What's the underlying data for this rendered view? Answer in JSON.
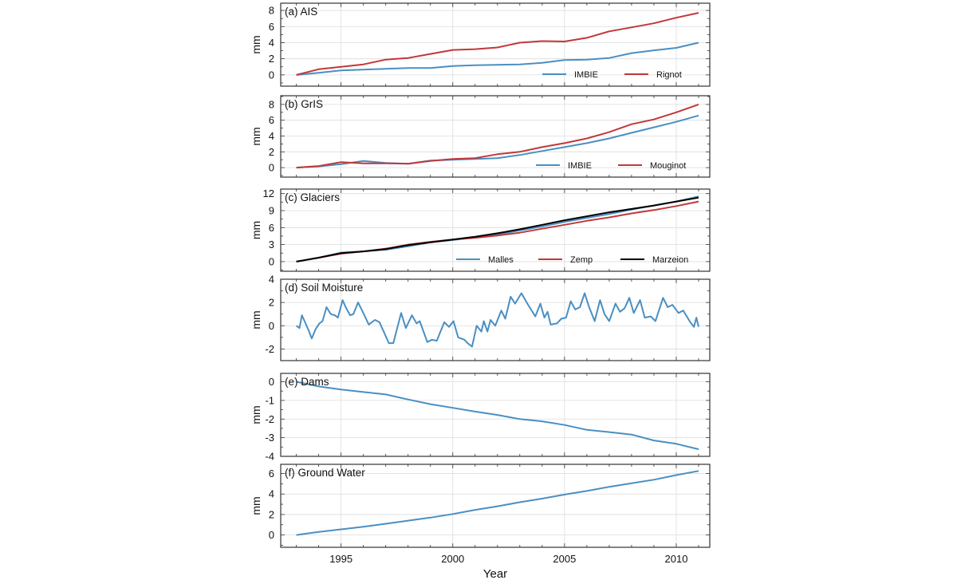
{
  "chart_data": [
    {
      "type": "line",
      "title": "(a) AIS",
      "ylabel": "mm",
      "xlabel": "",
      "xlim": [
        1992.3,
        2011.5
      ],
      "ylim": [
        -1.4,
        8.9
      ],
      "yticks": [
        0,
        2,
        4,
        6,
        8
      ],
      "grid": true,
      "legend_placement": "lower-right",
      "x": [
        1993,
        1994,
        1995,
        1996,
        1997,
        1998,
        1999,
        2000,
        2001,
        2002,
        2003,
        2004,
        2005,
        2006,
        2007,
        2008,
        2009,
        2010,
        2011
      ],
      "series": [
        {
          "name": "IMBIE",
          "color": "#4a8fc2",
          "values": [
            0,
            0.25,
            0.55,
            0.65,
            0.75,
            0.85,
            0.85,
            1.1,
            1.2,
            1.25,
            1.3,
            1.5,
            1.85,
            1.9,
            2.1,
            2.7,
            3.05,
            3.35,
            4.0
          ]
        },
        {
          "name": "Rignot",
          "color": "#c0383a",
          "values": [
            0,
            0.7,
            1.0,
            1.3,
            1.9,
            2.1,
            2.6,
            3.1,
            3.2,
            3.4,
            4.0,
            4.2,
            4.15,
            4.6,
            5.4,
            5.9,
            6.4,
            7.1,
            7.7
          ]
        }
      ]
    },
    {
      "type": "line",
      "title": "(b) GrIS",
      "ylabel": "mm",
      "xlabel": "",
      "xlim": [
        1992.3,
        2011.5
      ],
      "ylim": [
        -1.2,
        9.1
      ],
      "yticks": [
        0,
        2,
        4,
        6,
        8
      ],
      "grid": true,
      "legend_placement": "lower-right",
      "x": [
        1993,
        1994,
        1995,
        1996,
        1997,
        1998,
        1999,
        2000,
        2001,
        2002,
        2003,
        2004,
        2005,
        2006,
        2007,
        2008,
        2009,
        2010,
        2011
      ],
      "series": [
        {
          "name": "IMBIE",
          "color": "#4a8fc2",
          "values": [
            0,
            0.15,
            0.45,
            0.85,
            0.6,
            0.5,
            0.9,
            1.0,
            1.1,
            1.2,
            1.6,
            2.1,
            2.6,
            3.1,
            3.7,
            4.4,
            5.1,
            5.8,
            6.6
          ]
        },
        {
          "name": "Mouginot",
          "color": "#c0383a",
          "values": [
            0,
            0.2,
            0.7,
            0.55,
            0.55,
            0.5,
            0.85,
            1.1,
            1.2,
            1.7,
            2.0,
            2.6,
            3.1,
            3.7,
            4.5,
            5.5,
            6.1,
            7.0,
            8.0
          ]
        }
      ]
    },
    {
      "type": "line",
      "title": "(c) Glaciers",
      "ylabel": "mm",
      "xlabel": "",
      "xlim": [
        1992.3,
        2011.5
      ],
      "ylim": [
        -1.7,
        12.8
      ],
      "yticks": [
        0,
        3,
        6,
        9,
        12
      ],
      "grid": true,
      "legend_placement": "lower-right",
      "x": [
        1993,
        1994,
        1995,
        1996,
        1997,
        1998,
        1999,
        2000,
        2001,
        2002,
        2003,
        2004,
        2005,
        2006,
        2007,
        2008,
        2009,
        2010,
        2011
      ],
      "series": [
        {
          "name": "Malles",
          "color": "#4a8fc2",
          "values": [
            0,
            0.7,
            1.6,
            1.8,
            2.1,
            2.7,
            3.4,
            3.8,
            4.3,
            4.8,
            5.5,
            6.2,
            7.0,
            7.7,
            8.4,
            9.2,
            9.9,
            10.6,
            11.5
          ]
        },
        {
          "name": "Zemp",
          "color": "#c0383a",
          "values": [
            0,
            0.7,
            1.4,
            1.8,
            2.3,
            3.0,
            3.5,
            3.9,
            4.2,
            4.6,
            5.1,
            5.8,
            6.5,
            7.2,
            7.8,
            8.5,
            9.1,
            9.8,
            10.6
          ]
        },
        {
          "name": "Marzeion",
          "color": "#000000",
          "values": [
            0,
            0.7,
            1.5,
            1.8,
            2.2,
            2.9,
            3.4,
            3.9,
            4.4,
            5.0,
            5.7,
            6.5,
            7.3,
            8.0,
            8.7,
            9.3,
            9.9,
            10.6,
            11.3
          ]
        }
      ]
    },
    {
      "type": "line",
      "title": "(d) Soil Moisture",
      "ylabel": "mm",
      "xlabel": "",
      "xlim": [
        1992.3,
        2011.5
      ],
      "ylim": [
        -3,
        4
      ],
      "yticks": [
        -2,
        0,
        2,
        4
      ],
      "grid": true,
      "x": [
        1993.0,
        1993.14,
        1993.25,
        1993.39,
        1993.55,
        1993.69,
        1993.86,
        1994.03,
        1994.17,
        1994.35,
        1994.54,
        1994.72,
        1994.86,
        1995.07,
        1995.23,
        1995.41,
        1995.55,
        1995.76,
        1995.97,
        1996.24,
        1996.52,
        1996.72,
        1996.86,
        1997.14,
        1997.34,
        1997.69,
        1997.9,
        1998.17,
        1998.38,
        1998.52,
        1998.86,
        1999.07,
        1999.28,
        1999.62,
        1999.83,
        2000.03,
        2000.24,
        2000.52,
        2000.66,
        2000.86,
        2001.07,
        2001.28,
        2001.39,
        2001.55,
        2001.69,
        2001.9,
        2002.17,
        2002.35,
        2002.59,
        2002.79,
        2003.07,
        2003.34,
        2003.69,
        2003.92,
        2004.1,
        2004.24,
        2004.38,
        2004.66,
        2004.86,
        2005.07,
        2005.28,
        2005.48,
        2005.69,
        2005.9,
        2006.1,
        2006.35,
        2006.59,
        2006.79,
        2007.0,
        2007.28,
        2007.48,
        2007.69,
        2007.9,
        2008.1,
        2008.38,
        2008.59,
        2008.86,
        2009.07,
        2009.41,
        2009.62,
        2009.83,
        2010.1,
        2010.31,
        2010.63,
        2010.79,
        2010.9,
        2011.0
      ],
      "series": [
        {
          "color": "#4a8fc2",
          "values": [
            0,
            -0.2,
            0.9,
            0.3,
            -0.4,
            -1.1,
            -0.3,
            0.2,
            0.4,
            1.6,
            1.0,
            0.9,
            0.7,
            2.2,
            1.5,
            0.9,
            1.0,
            2.0,
            1.2,
            0.1,
            0.5,
            0.3,
            -0.3,
            -1.5,
            -1.5,
            1.1,
            -0.2,
            0.9,
            0.2,
            0.4,
            -1.4,
            -1.2,
            -1.3,
            0.3,
            -0.1,
            0.4,
            -1.0,
            -1.2,
            -1.5,
            -1.8,
            0.0,
            -0.5,
            0.4,
            -0.5,
            0.5,
            0.0,
            1.3,
            0.6,
            2.5,
            1.9,
            2.8,
            1.9,
            0.8,
            1.9,
            0.7,
            1.2,
            0.1,
            0.2,
            0.6,
            0.7,
            2.1,
            1.4,
            1.6,
            2.8,
            1.6,
            0.4,
            2.2,
            1.0,
            0.4,
            1.9,
            1.2,
            1.5,
            2.4,
            1.1,
            2.2,
            0.7,
            0.8,
            0.4,
            2.4,
            1.6,
            1.8,
            1.1,
            1.3,
            0.3,
            -0.1,
            0.7,
            -0.1
          ]
        }
      ]
    },
    {
      "type": "line",
      "title": "(e) Dams",
      "ylabel": "mm",
      "xlabel": "",
      "xlim": [
        1992.3,
        2011.5
      ],
      "ylim": [
        -4,
        0.45
      ],
      "yticks": [
        -4,
        -3,
        -2,
        -1,
        0
      ],
      "grid": true,
      "x": [
        1993,
        1994,
        1995,
        1996,
        1997,
        1998,
        1999,
        2000,
        2001,
        2002,
        2003,
        2004,
        2005,
        2006,
        2007,
        2008,
        2009,
        2010,
        2011
      ],
      "series": [
        {
          "color": "#4a8fc2",
          "values": [
            0,
            -0.25,
            -0.42,
            -0.55,
            -0.68,
            -0.95,
            -1.2,
            -1.4,
            -1.6,
            -1.78,
            -2.0,
            -2.12,
            -2.32,
            -2.58,
            -2.7,
            -2.83,
            -3.15,
            -3.33,
            -3.62
          ]
        }
      ]
    },
    {
      "type": "line",
      "title": "(f) Ground Water",
      "ylabel": "mm",
      "xlabel": "Year",
      "xlim": [
        1992.3,
        2011.5
      ],
      "ylim": [
        -1.2,
        6.9
      ],
      "yticks": [
        0,
        2,
        4,
        6
      ],
      "xticks": [
        1995,
        2000,
        2005,
        2010
      ],
      "grid": true,
      "x": [
        1993,
        1994,
        1995,
        1996,
        1997,
        1998,
        1999,
        2000,
        2001,
        2002,
        2003,
        2004,
        2005,
        2006,
        2007,
        2008,
        2009,
        2010,
        2011
      ],
      "series": [
        {
          "color": "#4a8fc2",
          "values": [
            0,
            0.3,
            0.55,
            0.8,
            1.1,
            1.4,
            1.7,
            2.05,
            2.45,
            2.8,
            3.2,
            3.55,
            3.95,
            4.3,
            4.7,
            5.05,
            5.4,
            5.85,
            6.25
          ]
        }
      ]
    }
  ]
}
